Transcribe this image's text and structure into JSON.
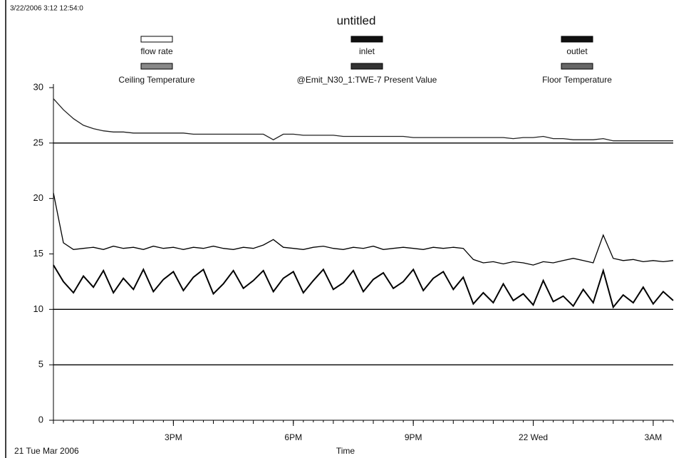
{
  "chart_data": {
    "type": "line",
    "title": "untitled",
    "timestamp": "3/22/2006 3:12 12:54:0",
    "date_label": "21 Tue Mar 2006",
    "x_label": "Time",
    "categories": [
      null,
      null,
      null,
      null,
      null,
      null,
      null,
      null,
      null,
      null,
      null,
      null,
      "3PM",
      null,
      null,
      null,
      null,
      null,
      null,
      null,
      null,
      null,
      null,
      null,
      "6PM",
      null,
      null,
      null,
      null,
      null,
      null,
      null,
      null,
      null,
      null,
      null,
      "9PM",
      null,
      null,
      null,
      null,
      null,
      null,
      null,
      null,
      null,
      null,
      null,
      "22 Wed",
      null,
      null,
      null,
      null,
      null,
      null,
      null,
      null,
      null,
      null,
      null,
      "3AM",
      null,
      null
    ],
    "ylim": [
      0,
      30
    ],
    "yticks": [
      0,
      5,
      10,
      15,
      20,
      25,
      30
    ],
    "grid": false,
    "legend": "top",
    "series": [
      {
        "name": "flow rate",
        "color": "#000000",
        "swatch": "#ffffff",
        "values": [
          5,
          5,
          5,
          5,
          5,
          5,
          5,
          5,
          5,
          5,
          5,
          5,
          5,
          5,
          5,
          5,
          5,
          5,
          5,
          5,
          5,
          5,
          5,
          5,
          5,
          5,
          5,
          5,
          5,
          5,
          5,
          5,
          5,
          5,
          5,
          5,
          5,
          5,
          5,
          5,
          5,
          5,
          5,
          5,
          5,
          5,
          5,
          5,
          5,
          5,
          5,
          5,
          5,
          5,
          5,
          5,
          5,
          5,
          5,
          5,
          5,
          5,
          5
        ]
      },
      {
        "name": "inlet",
        "color": "#000000",
        "swatch": "#111111",
        "values": [
          14,
          12.5,
          11.5,
          13,
          12,
          13.5,
          11.5,
          12.8,
          11.8,
          13.6,
          11.6,
          12.7,
          13.4,
          11.7,
          12.9,
          13.6,
          11.4,
          12.3,
          13.5,
          11.9,
          12.6,
          13.5,
          11.6,
          12.8,
          13.4,
          11.5,
          12.6,
          13.6,
          11.8,
          12.4,
          13.5,
          11.6,
          12.7,
          13.3,
          11.9,
          12.5,
          13.6,
          11.7,
          12.8,
          13.4,
          11.8,
          12.9,
          10.5,
          11.5,
          10.6,
          12.3,
          10.8,
          11.4,
          10.4,
          12.6,
          10.7,
          11.2,
          10.3,
          11.8,
          10.6,
          13.5,
          10.2,
          11.3,
          10.6,
          12,
          10.5,
          11.6,
          10.8
        ]
      },
      {
        "name": "outlet",
        "color": "#000000",
        "swatch": "#111111",
        "values": [
          10,
          10,
          10,
          10,
          10,
          10,
          10,
          10,
          10,
          10,
          10,
          10,
          10,
          10,
          10,
          10,
          10,
          10,
          10,
          10,
          10,
          10,
          10,
          10,
          10,
          10,
          10,
          10,
          10,
          10,
          10,
          10,
          10,
          10,
          10,
          10,
          10,
          10,
          10,
          10,
          10,
          10,
          10,
          10,
          10,
          10,
          10,
          10,
          10,
          10,
          10,
          10,
          10,
          10,
          10,
          10,
          10,
          10,
          10,
          10,
          10,
          10,
          10
        ]
      },
      {
        "name": "Ceiling Temperature",
        "color": "#222222",
        "swatch": "#888888",
        "values": [
          29,
          28,
          27.2,
          26.6,
          26.3,
          26.1,
          26,
          26,
          25.9,
          25.9,
          25.9,
          25.9,
          25.9,
          25.9,
          25.8,
          25.8,
          25.8,
          25.8,
          25.8,
          25.8,
          25.8,
          25.8,
          25.3,
          25.8,
          25.8,
          25.7,
          25.7,
          25.7,
          25.7,
          25.6,
          25.6,
          25.6,
          25.6,
          25.6,
          25.6,
          25.6,
          25.5,
          25.5,
          25.5,
          25.5,
          25.5,
          25.5,
          25.5,
          25.5,
          25.5,
          25.5,
          25.4,
          25.5,
          25.5,
          25.6,
          25.4,
          25.4,
          25.3,
          25.3,
          25.3,
          25.4,
          25.2,
          25.2,
          25.2,
          25.2,
          25.2,
          25.2,
          25.2
        ]
      },
      {
        "name": "@Emit_N30_1:TWE-7 Present Value",
        "color": "#000000",
        "swatch": "#333333",
        "values": [
          20.5,
          16,
          15.4,
          15.5,
          15.6,
          15.4,
          15.7,
          15.5,
          15.6,
          15.4,
          15.7,
          15.5,
          15.6,
          15.4,
          15.6,
          15.5,
          15.7,
          15.5,
          15.4,
          15.6,
          15.5,
          15.8,
          16.3,
          15.6,
          15.5,
          15.4,
          15.6,
          15.7,
          15.5,
          15.4,
          15.6,
          15.5,
          15.7,
          15.4,
          15.5,
          15.6,
          15.5,
          15.4,
          15.6,
          15.5,
          15.6,
          15.5,
          14.5,
          14.2,
          14.3,
          14.1,
          14.3,
          14.2,
          14,
          14.3,
          14.2,
          14.4,
          14.6,
          14.4,
          14.2,
          16.7,
          14.6,
          14.4,
          14.5,
          14.3,
          14.4,
          14.3,
          14.4
        ]
      },
      {
        "name": "Floor Temperature",
        "color": "#000000",
        "swatch": "#666666",
        "values": [
          25,
          25,
          25,
          25,
          25,
          25,
          25,
          25,
          25,
          25,
          25,
          25,
          25,
          25,
          25,
          25,
          25,
          25,
          25,
          25,
          25,
          25,
          25,
          25,
          25,
          25,
          25,
          25,
          25,
          25,
          25,
          25,
          25,
          25,
          25,
          25,
          25,
          25,
          25,
          25,
          25,
          25,
          25,
          25,
          25,
          25,
          25,
          25,
          25,
          25,
          25,
          25,
          25,
          25,
          25,
          25,
          25,
          25,
          25,
          25,
          25,
          25,
          25
        ]
      }
    ]
  }
}
